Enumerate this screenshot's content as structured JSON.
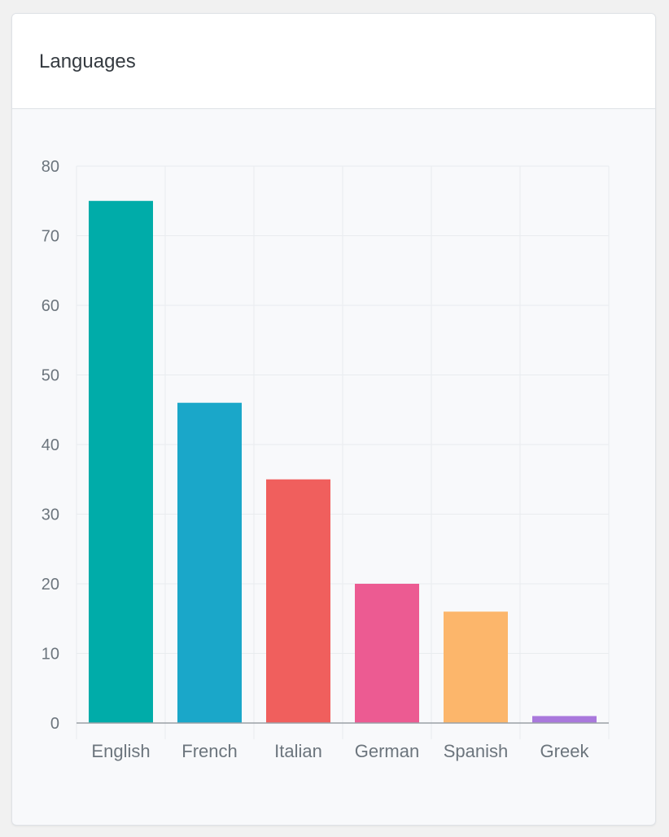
{
  "card": {
    "title": "Languages"
  },
  "chart_data": {
    "type": "bar",
    "title": "",
    "xlabel": "",
    "ylabel": "",
    "categories": [
      "English",
      "French",
      "Italian",
      "German",
      "Spanish",
      "Greek"
    ],
    "values": [
      75,
      46,
      35,
      20,
      16,
      1
    ],
    "colors": [
      "#00aca9",
      "#1aa7c9",
      "#f05f5d",
      "#ec5b92",
      "#fcb66b",
      "#a978dc"
    ],
    "ylim": [
      0,
      80
    ],
    "yticks": [
      0,
      10,
      20,
      30,
      40,
      50,
      60,
      70,
      80
    ],
    "grid": true,
    "legend": "none"
  }
}
